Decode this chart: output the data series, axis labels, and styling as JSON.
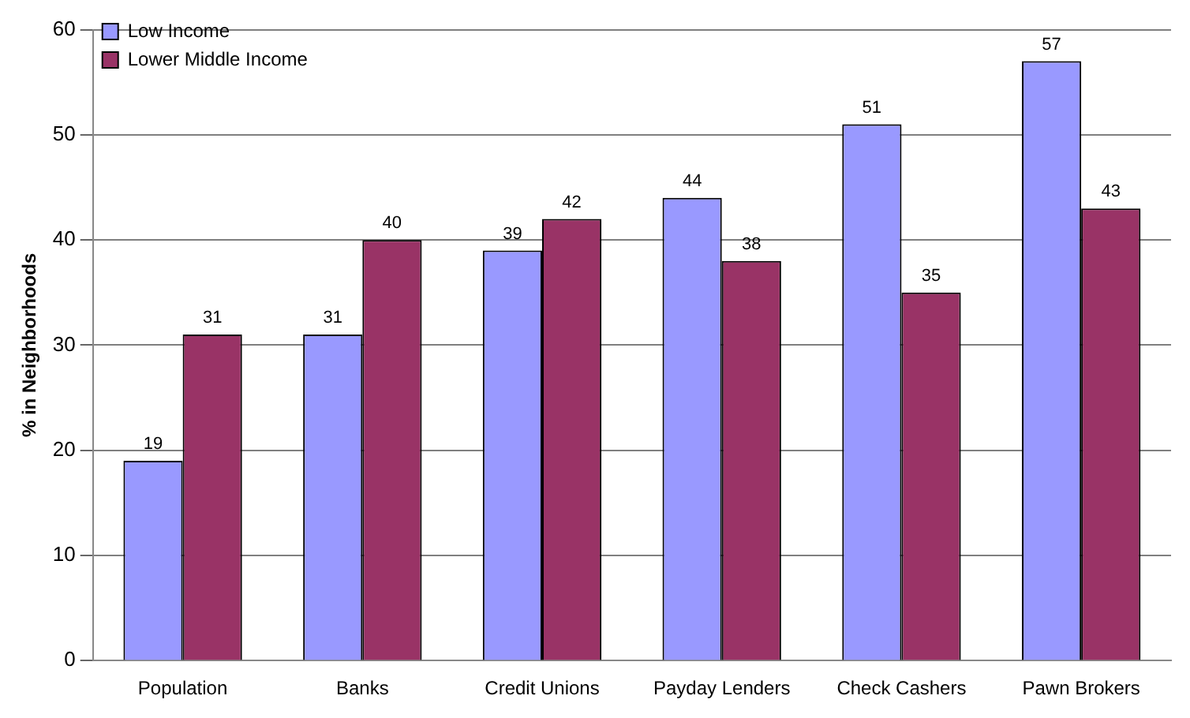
{
  "chart_data": {
    "type": "bar",
    "ylabel": "% in Neighborhoods",
    "categories": [
      "Population",
      "Banks",
      "Credit Unions",
      "Payday Lenders",
      "Check Cashers",
      "Pawn Brokers"
    ],
    "series": [
      {
        "name": "Low Income",
        "color": "#9999ff",
        "values": [
          19,
          31,
          39,
          44,
          51,
          57
        ]
      },
      {
        "name": "Lower Middle Income",
        "color": "#993366",
        "values": [
          31,
          40,
          42,
          38,
          35,
          43
        ]
      }
    ],
    "ylim": [
      0,
      60
    ],
    "yticks": [
      0,
      10,
      20,
      30,
      40,
      50,
      60
    ],
    "grid": "y",
    "legend": "top left",
    "data_labels": true
  }
}
